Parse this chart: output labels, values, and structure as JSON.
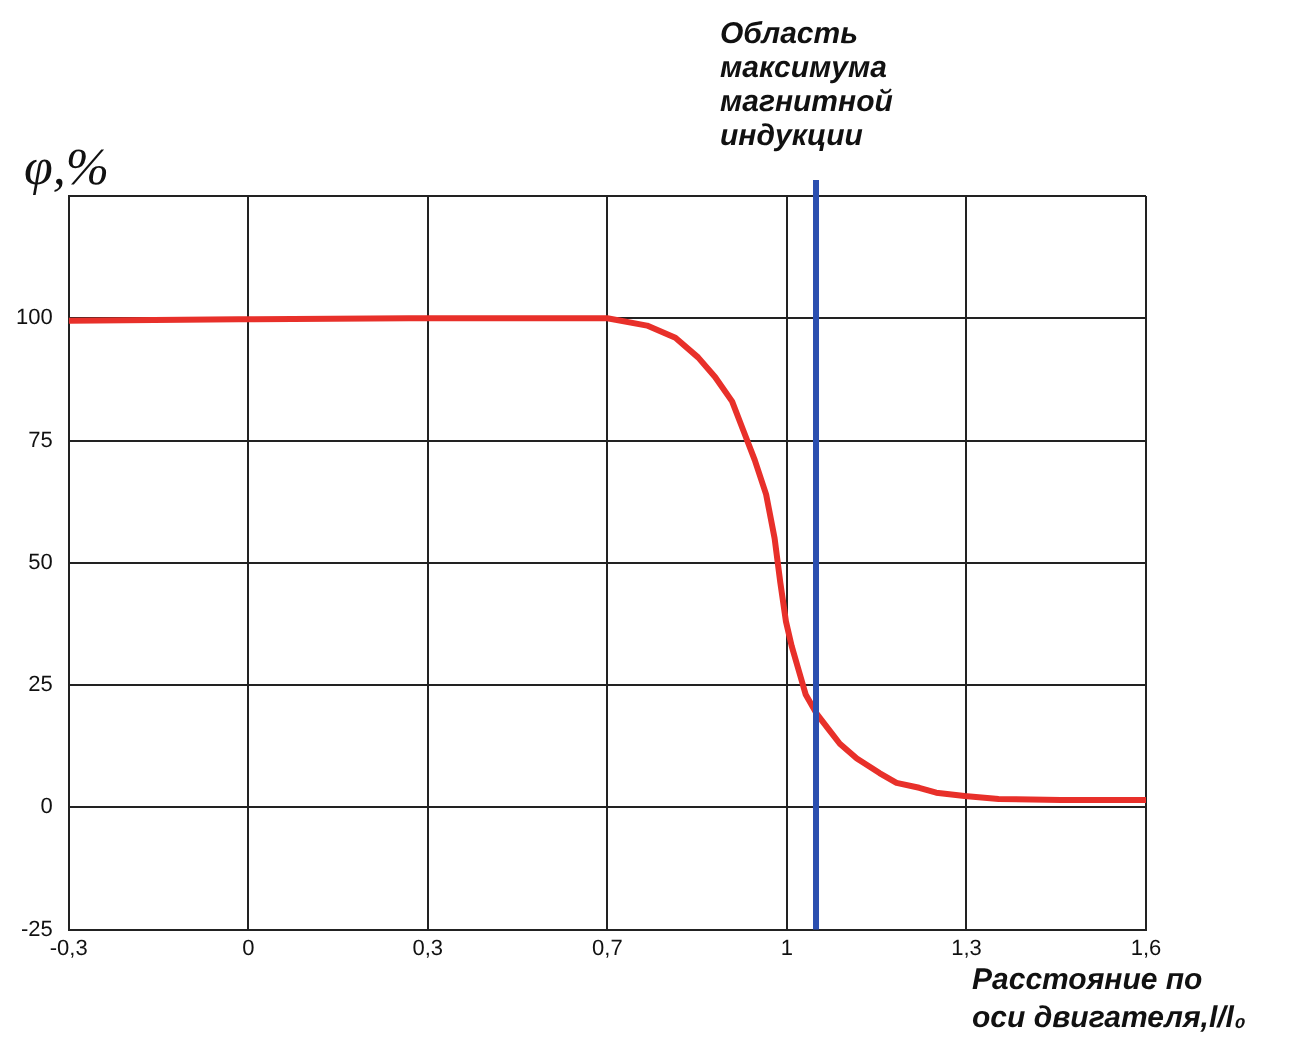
{
  "chart_data": {
    "type": "line",
    "ylabel": "φ,%",
    "xlabel": "Расстояние по оси двигателя,l/l₀",
    "series": [
      {
        "color": "#e8302a",
        "x": [
          -0.3,
          0,
          0.3,
          0.5,
          0.65,
          0.72,
          0.77,
          0.81,
          0.84,
          0.87,
          0.89,
          0.91,
          0.93,
          0.945,
          0.955,
          0.965,
          0.975,
          0.99,
          1.0,
          1.02,
          1.04,
          1.06,
          1.09,
          1.13,
          1.16,
          1.2,
          1.23,
          1.28,
          1.34,
          1.45,
          1.6
        ],
        "values": [
          99.5,
          99.8,
          100,
          100,
          100,
          98.5,
          96,
          92,
          88,
          83,
          77,
          71,
          64,
          55,
          46,
          38,
          33,
          27,
          23,
          19,
          16,
          13,
          10,
          7,
          5,
          4,
          3,
          2.3,
          1.7,
          1.5,
          1.5
        ]
      }
    ],
    "xlim": [
      -0.3,
      1.6
    ],
    "xticks": [
      {
        "value": -0.3,
        "label": "-0,3"
      },
      {
        "value": 0.0167,
        "label": "0"
      },
      {
        "value": 0.3333,
        "label": "0,3"
      },
      {
        "value": 0.65,
        "label": "0,7"
      },
      {
        "value": 0.9667,
        "label": "1"
      },
      {
        "value": 1.2833,
        "label": "1,3"
      },
      {
        "value": 1.6,
        "label": "1,6"
      }
    ],
    "ylim": [
      -25,
      125
    ],
    "yticks": [
      -25,
      0,
      25,
      50,
      75,
      100,
      {
        "value": 125,
        "label": null
      }
    ],
    "grid": true,
    "legend": false,
    "marker": "none",
    "line_style": "solid",
    "ref_lines": [
      {
        "axis": "x",
        "value": 1.018,
        "label": "Область максимума магнитной индукции",
        "color": "#2b4fb0"
      }
    ]
  }
}
